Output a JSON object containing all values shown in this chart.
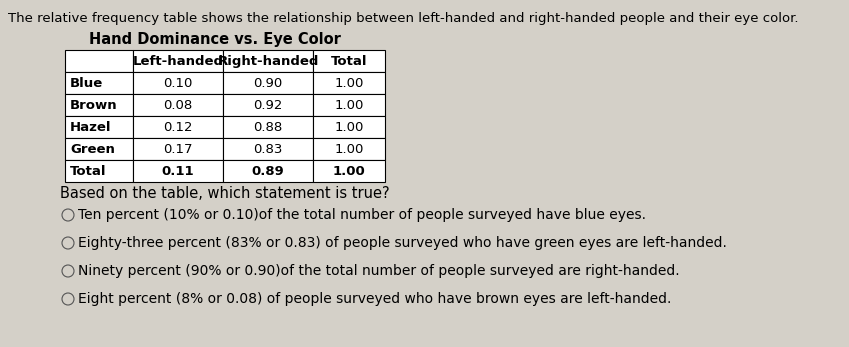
{
  "title_text": "The relative frequency table shows the relationship between left-handed and right-handed people and their eye color.",
  "table_title": "Hand Dominance vs. Eye Color",
  "col_headers": [
    "Left-handed",
    "Right-handed",
    "Total"
  ],
  "row_labels": [
    "Blue",
    "Brown",
    "Hazel",
    "Green",
    "Total"
  ],
  "table_data": [
    [
      "0.10",
      "0.90",
      "1.00"
    ],
    [
      "0.08",
      "0.92",
      "1.00"
    ],
    [
      "0.12",
      "0.88",
      "1.00"
    ],
    [
      "0.17",
      "0.83",
      "1.00"
    ],
    [
      "0.11",
      "0.89",
      "1.00"
    ]
  ],
  "question": "Based on the table, which statement is true?",
  "options": [
    "Ten percent (10% or 0.10)of the total number of people surveyed have blue eyes.",
    "Eighty-three percent (83% or 0.83) of people surveyed who have green eyes are left-handed.",
    "Ninety percent (90% or 0.90)of the total number of people surveyed are right-handed.",
    "Eight percent (8% or 0.08) of people surveyed who have brown eyes are left-handed."
  ],
  "option_selected": [
    false,
    false,
    false,
    false
  ],
  "bg_color": "#d4d0c8",
  "table_bg": "#ffffff",
  "text_color": "#000000",
  "title_fontsize": 9.5,
  "table_title_fontsize": 10.5,
  "table_fontsize": 9.5,
  "option_fontsize": 10.0,
  "question_fontsize": 10.5
}
